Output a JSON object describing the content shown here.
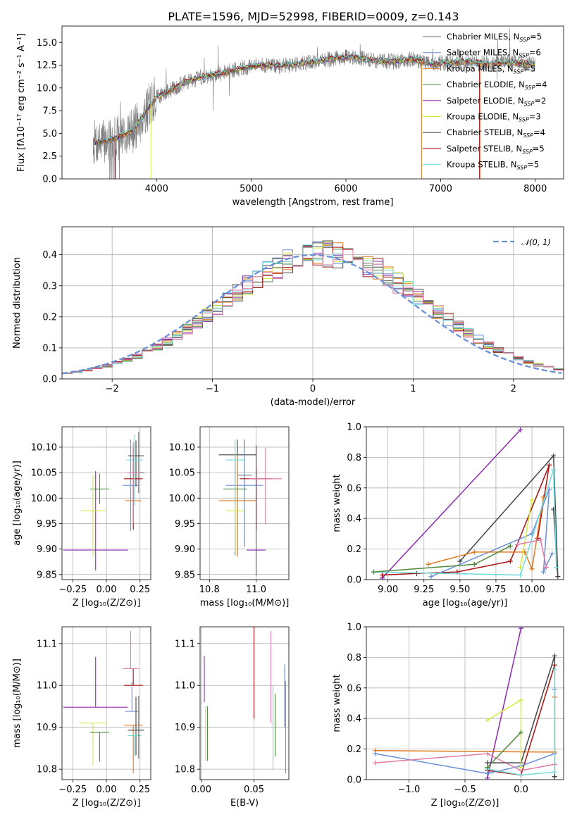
{
  "colors": {
    "chabrier_miles": "#6f6f6f",
    "salpeter_miles": "#6a8fd8",
    "kroupa_miles": "#e07a1f",
    "chabrier_elodie": "#4f8a3f",
    "salpeter_elodie": "#8d2ab0",
    "kroupa_elodie": "#d4ea3a",
    "chabrier_stelib": "#444444",
    "salpeter_stelib": "#aa1010",
    "kroupa_stelib": "#70dbdb",
    "pink": "#e07aa8",
    "normal": "#6a8fd8"
  },
  "chart_data": [
    {
      "id": "spectrum",
      "type": "line",
      "title": "PLATE=1596, MJD=52998, FIBERID=0009, z=0.143",
      "xlabel": "wavelength [Angstrom, rest frame]",
      "ylabel": "Flux [fλ10⁻¹⁷ erg cm⁻² s⁻¹ A⁻¹]",
      "xlim": [
        3000,
        8300
      ],
      "ylim": [
        0,
        16.8
      ],
      "xticks": [
        4000,
        5000,
        6000,
        7000,
        8000
      ],
      "yticks": [
        0.0,
        2.5,
        5.0,
        7.5,
        10.0,
        12.5,
        15.0
      ],
      "ytick_labels": [
        "0.0",
        "2.5",
        "5.0",
        "7.5",
        "10.0",
        "12.5",
        "15.0"
      ],
      "grid": false,
      "legend_position": "top-right",
      "legend": [
        {
          "label": "Chabrier MILES, N",
          "sub": "SSP",
          "suffix": "=5",
          "color": "#6f6f6f"
        },
        {
          "label": "Salpeter MILES, N",
          "sub": "SSP",
          "suffix": "=6",
          "color": "#6a8fd8"
        },
        {
          "label": "Kroupa MILES, N",
          "sub": "SSP",
          "suffix": "=5",
          "color": "#e07a1f"
        },
        {
          "label": "Chabrier ELODIE, N",
          "sub": "SSP",
          "suffix": "=4",
          "color": "#4f8a3f"
        },
        {
          "label": "Salpeter ELODIE, N",
          "sub": "SSP",
          "suffix": "=2",
          "color": "#8d2ab0"
        },
        {
          "label": "Kroupa ELODIE, N",
          "sub": "SSP",
          "suffix": "=3",
          "color": "#d4ea3a"
        },
        {
          "label": "Chabrier STELIB, N",
          "sub": "SSP",
          "suffix": "=4",
          "color": "#444444"
        },
        {
          "label": "Salpeter STELIB, N",
          "sub": "SSP",
          "suffix": "=5",
          "color": "#aa1010"
        },
        {
          "label": "Kroupa STELIB, N",
          "sub": "SSP",
          "suffix": "=5",
          "color": "#70dbdb"
        }
      ],
      "continuum": {
        "wavelength": [
          3330,
          3450,
          3600,
          3750,
          3900,
          4000,
          4100,
          4300,
          4500,
          4700,
          4900,
          5100,
          5300,
          5500,
          5700,
          5900,
          6100,
          6300,
          6500,
          6700,
          6900,
          7100,
          7300,
          7500,
          7700,
          7900,
          8000
        ],
        "flux": [
          4.0,
          4.1,
          4.6,
          5.3,
          7.6,
          9.0,
          9.5,
          10.6,
          11.3,
          11.6,
          12.2,
          12.5,
          12.4,
          12.7,
          12.9,
          13.3,
          13.4,
          13.0,
          12.9,
          13.2,
          12.6,
          12.8,
          12.9,
          12.6,
          12.8,
          12.7,
          12.6
        ]
      }
    },
    {
      "id": "residuals",
      "type": "line",
      "xlabel": "(data-model)/error",
      "ylabel": "Normed distribution",
      "xlim": [
        -2.5,
        2.5
      ],
      "ylim": [
        0,
        0.49
      ],
      "xticks": [
        -2,
        -1,
        0,
        1,
        2
      ],
      "xtick_labels": [
        "−2",
        "−1",
        "0",
        "1",
        "2"
      ],
      "yticks": [
        0.0,
        0.1,
        0.2,
        0.3,
        0.4
      ],
      "ytick_labels": [
        "0.0",
        "0.1",
        "0.2",
        "0.3",
        "0.4"
      ],
      "grid": true,
      "legend_position": "top-right",
      "legend": [
        {
          "label": "𝒩(0, 1)",
          "color": "#6a8fd8"
        }
      ],
      "bin_width": 0.1
    },
    {
      "id": "age-vs-Z",
      "type": "scatter",
      "xlabel": "Z [log₁₀(Z/Z⊙)]",
      "ylabel": "age  [log₁₀(age/yr)]",
      "xlim": [
        -0.33,
        0.33
      ],
      "ylim": [
        9.84,
        10.14
      ],
      "xticks": [
        -0.25,
        0.0,
        0.25
      ],
      "xtick_labels": [
        "−0.25",
        "0.00",
        "0.25"
      ],
      "yticks": [
        9.85,
        9.9,
        9.95,
        10.0,
        10.05,
        10.1
      ],
      "ytick_labels": [
        "9.85",
        "9.90",
        "9.95",
        "10.00",
        "10.05",
        "10.10"
      ],
      "grid": true,
      "points": [
        {
          "x": 0.24,
          "y": 10.05,
          "xerr": 0.04,
          "yerr": [
            0.04,
            0.08
          ],
          "color": "#6f6f6f"
        },
        {
          "x": 0.18,
          "y": 10.025,
          "xerr": 0.06,
          "yerr": [
            0.09,
            0.09
          ],
          "color": "#6a8fd8"
        },
        {
          "x": 0.2,
          "y": 9.995,
          "xerr": 0.06,
          "yerr": [
            0.05,
            0.09
          ],
          "color": "#e07a1f"
        },
        {
          "x": -0.05,
          "y": 10.018,
          "xerr": 0.07,
          "yerr": [
            0.03,
            0.03
          ],
          "color": "#4f8a3f"
        },
        {
          "x": -0.08,
          "y": 9.898,
          "xerr": 0.24,
          "yerr": [
            0.04,
            0.155
          ],
          "color": "#8d2ab0"
        },
        {
          "x": -0.1,
          "y": 9.975,
          "xerr": 0.09,
          "yerr": [
            0.09,
            0.07
          ],
          "color": "#d4ea3a"
        },
        {
          "x": 0.22,
          "y": 10.083,
          "xerr": 0.06,
          "yerr": [
            0.06,
            0.03
          ],
          "color": "#444444"
        },
        {
          "x": 0.2,
          "y": 10.038,
          "xerr": 0.07,
          "yerr": [
            0.1,
            0.06
          ],
          "color": "#aa1010"
        },
        {
          "x": 0.21,
          "y": 10.075,
          "xerr": 0.06,
          "yerr": [
            0.09,
            0.05
          ],
          "color": "#70dbdb"
        },
        {
          "x": 0.2,
          "y": 10.05,
          "xerr": 0.05,
          "yerr": [
            0.1,
            0.06
          ],
          "color": "#e07aa8"
        }
      ]
    },
    {
      "id": "age-vs-mass",
      "type": "scatter",
      "xlabel": "mass [log₁₀(M/M⊙)]",
      "xlim": [
        10.76,
        11.14
      ],
      "ylim": [
        9.84,
        10.14
      ],
      "xticks": [
        10.8,
        11.0
      ],
      "xtick_labels": [
        "10.8",
        "11.0"
      ],
      "yticks": [
        9.85,
        9.9,
        9.95,
        10.0,
        10.05,
        10.1
      ],
      "ytick_labels": [
        "9.85",
        "9.90",
        "9.95",
        "10.00",
        "10.05",
        "10.10"
      ],
      "grid": true,
      "points": [
        {
          "x": 10.92,
          "y": 10.085,
          "xerr": 0.08,
          "yerr": [
            0.2,
            0.03
          ],
          "color": "#444444"
        },
        {
          "x": 10.95,
          "y": 10.045,
          "xerr": 0.03,
          "yerr": [
            0.14,
            0.07
          ],
          "color": "#6f6f6f"
        },
        {
          "x": 10.95,
          "y": 10.025,
          "xerr": 0.08,
          "yerr": [
            0.115,
            0.07
          ],
          "color": "#6a8fd8"
        },
        {
          "x": 10.92,
          "y": 9.995,
          "xerr": 0.08,
          "yerr": [
            0.11,
            0.09
          ],
          "color": "#e07a1f"
        },
        {
          "x": 10.91,
          "y": 10.018,
          "xerr": 0.05,
          "yerr": [
            0.13,
            0.07
          ],
          "color": "#4f8a3f"
        },
        {
          "x": 11.0,
          "y": 9.898,
          "xerr": 0.04,
          "yerr": [
            0.05,
            0.16
          ],
          "color": "#8d2ab0"
        },
        {
          "x": 10.91,
          "y": 9.975,
          "xerr": 0.04,
          "yerr": [
            0.08,
            0.06
          ],
          "color": "#d4ea3a"
        },
        {
          "x": 11.0,
          "y": 10.038,
          "xerr": 0.07,
          "yerr": [
            0.1,
            0.065
          ],
          "color": "#aa1010"
        },
        {
          "x": 10.91,
          "y": 10.075,
          "xerr": 0.04,
          "yerr": [
            0.09,
            0.04
          ],
          "color": "#70dbdb"
        },
        {
          "x": 11.04,
          "y": 10.038,
          "xerr": 0.07,
          "yerr": [
            0.09,
            0.06
          ],
          "color": "#e07aa8"
        }
      ]
    },
    {
      "id": "massweight-vs-age",
      "type": "line",
      "xlabel": "age  [log₁₀(age/yr)]",
      "ylabel": "mass weight",
      "xlim": [
        8.85,
        10.22
      ],
      "ylim": [
        0.0,
        1.0
      ],
      "xticks": [
        9.0,
        9.25,
        9.5,
        9.75,
        10.0
      ],
      "xtick_labels": [
        "9.00",
        "9.25",
        "9.50",
        "9.75",
        "10.00"
      ],
      "yticks": [
        0.0,
        0.2,
        0.4,
        0.6,
        0.8,
        1.0
      ],
      "ytick_labels": [
        "0.0",
        "0.2",
        "0.4",
        "0.6",
        "0.8",
        "1.0"
      ],
      "grid": true,
      "series": [
        {
          "color": "#8d2ab0",
          "x": [
            8.96,
            9.92
          ],
          "y": [
            0.01,
            0.98
          ]
        },
        {
          "color": "#444444",
          "x": [
            9.5,
            10.15,
            10.18,
            10.15
          ],
          "y": [
            0.12,
            0.81,
            0.02,
            0.46
          ]
        },
        {
          "color": "#aa1010",
          "x": [
            8.96,
            9.2,
            9.48,
            9.85,
            10.12,
            10.04
          ],
          "y": [
            0.03,
            0.04,
            0.05,
            0.12,
            0.75,
            0.27
          ]
        },
        {
          "color": "#6a8fd8",
          "x": [
            9.3,
            10.0,
            10.12,
            10.08,
            10.14
          ],
          "y": [
            0.02,
            0.3,
            0.59,
            0.05,
            0.17
          ]
        },
        {
          "color": "#e07a1f",
          "x": [
            9.28,
            9.6,
            9.95,
            10.0,
            10.08
          ],
          "y": [
            0.1,
            0.18,
            0.18,
            0.07,
            0.54
          ]
        },
        {
          "color": "#70dbdb",
          "x": [
            8.9,
            9.92,
            10.15,
            10.17
          ],
          "y": [
            0.05,
            0.03,
            0.72,
            0.08
          ]
        },
        {
          "color": "#d4ea3a",
          "x": [
            9.92,
            10.0
          ],
          "y": [
            0.08,
            0.52
          ]
        },
        {
          "color": "#4f8a3f",
          "x": [
            8.9,
            9.6,
            9.85
          ],
          "y": [
            0.05,
            0.1,
            0.22
          ]
        },
        {
          "color": "#e07aa8",
          "x": [
            9.9,
            10.06,
            10.1
          ],
          "y": [
            0.23,
            0.26,
            0.08
          ]
        }
      ]
    },
    {
      "id": "mass-vs-Z",
      "type": "scatter",
      "xlabel": "Z [log₁₀(Z/Z⊙)]",
      "ylabel": "mass [log₁₀(M/M⊙)]",
      "xlim": [
        -0.33,
        0.33
      ],
      "ylim": [
        10.775,
        11.14
      ],
      "xticks": [
        -0.25,
        0.0,
        0.25
      ],
      "xtick_labels": [
        "−0.25",
        "0.00",
        "0.25"
      ],
      "yticks": [
        10.8,
        10.9,
        11.0,
        11.1
      ],
      "ytick_labels": [
        "10.8",
        "10.9",
        "11.0",
        "11.1"
      ],
      "grid": true,
      "points": [
        {
          "x": -0.08,
          "y": 10.948,
          "xerr": 0.24,
          "yerr": [
            0.0,
            0.12
          ],
          "color": "#8d2ab0"
        },
        {
          "x": 0.2,
          "y": 11.0,
          "xerr": 0.07,
          "yerr": [
            0.0,
            0.04
          ],
          "color": "#aa1010"
        },
        {
          "x": 0.19,
          "y": 10.938,
          "xerr": 0.05,
          "yerr": [
            0.0,
            0.07
          ],
          "color": "#6a8fd8"
        },
        {
          "x": 0.2,
          "y": 10.905,
          "xerr": 0.07,
          "yerr": [
            0.115,
            0.0
          ],
          "color": "#e07a1f"
        },
        {
          "x": -0.1,
          "y": 10.91,
          "xerr": 0.1,
          "yerr": [
            0.1,
            0.0
          ],
          "color": "#d4ea3a"
        },
        {
          "x": -0.05,
          "y": 10.888,
          "xerr": 0.07,
          "yerr": [
            0.07,
            0.0
          ],
          "color": "#4f8a3f"
        },
        {
          "x": 0.22,
          "y": 10.893,
          "xerr": 0.06,
          "yerr": [
            0.06,
            0.08
          ],
          "color": "#444444"
        },
        {
          "x": 0.21,
          "y": 10.88,
          "xerr": 0.05,
          "yerr": [
            0.05,
            0.0
          ],
          "color": "#70dbdb"
        },
        {
          "x": 0.18,
          "y": 11.04,
          "xerr": 0.06,
          "yerr": [
            0.0,
            0.09
          ],
          "color": "#e07aa8"
        },
        {
          "x": 0.24,
          "y": 10.895,
          "xerr": 0.0,
          "yerr": [
            0.07,
            0.08
          ],
          "color": "#6f6f6f"
        }
      ]
    },
    {
      "id": "mass-vs-ebv",
      "type": "scatter",
      "xlabel": "E(B-V)",
      "xlim": [
        -0.001,
        0.083
      ],
      "ylim": [
        10.775,
        11.14
      ],
      "xticks": [
        0.0,
        0.05
      ],
      "xtick_labels": [
        "0.00",
        "0.05"
      ],
      "yticks": [
        10.8,
        10.9,
        11.0,
        11.1
      ],
      "ytick_labels": [
        "10.8",
        "10.9",
        "11.0",
        "11.1"
      ],
      "grid": true,
      "points": [
        {
          "x": 0.003,
          "y": 11.01,
          "yerr": [
            0.05,
            0.06
          ],
          "color": "#8d2ab0"
        },
        {
          "x": 0.004,
          "y": 10.89,
          "yerr": [
            0.07,
            0.06
          ],
          "color": "#d4ea3a"
        },
        {
          "x": 0.006,
          "y": 10.89,
          "yerr": [
            0.07,
            0.06
          ],
          "color": "#4f8a3f"
        },
        {
          "x": 0.05,
          "y": 11.03,
          "yerr": [
            0.11,
            0.13
          ],
          "color": "#aa1010"
        },
        {
          "x": 0.066,
          "y": 11.04,
          "yerr": [
            0.13,
            0.09
          ],
          "color": "#e07aa8"
        },
        {
          "x": 0.068,
          "y": 10.9,
          "yerr": [
            0.1,
            0.1
          ],
          "color": "#70dbdb"
        },
        {
          "x": 0.07,
          "y": 10.9,
          "yerr": [
            0.07,
            0.08
          ],
          "color": "#4f8a3f"
        },
        {
          "x": 0.079,
          "y": 10.96,
          "yerr": [
            0.06,
            0.09
          ],
          "color": "#6a8fd8"
        },
        {
          "x": 0.08,
          "y": 10.9,
          "yerr": [
            0.11,
            0.11
          ],
          "color": "#e07a1f"
        }
      ]
    },
    {
      "id": "massweight-vs-Z",
      "type": "line",
      "xlabel": "Z [log₁₀(Z/Z⊙)]",
      "ylabel": "mass weight",
      "xlim": [
        -1.38,
        0.38
      ],
      "ylim": [
        0.0,
        1.0
      ],
      "xticks": [
        -1.0,
        -0.5,
        0.0
      ],
      "xtick_labels": [
        "−1.0",
        "−0.5",
        "0.0"
      ],
      "yticks": [
        0.0,
        0.2,
        0.4,
        0.6,
        0.8,
        1.0
      ],
      "ytick_labels": [
        "0.0",
        "0.2",
        "0.4",
        "0.6",
        "0.8",
        "1.0"
      ],
      "grid": true,
      "series": [
        {
          "color": "#8d2ab0",
          "x": [
            -0.3,
            0.0
          ],
          "y": [
            0.01,
            0.99
          ]
        },
        {
          "color": "#aa1010",
          "x": [
            -0.3,
            0.0,
            0.3,
            0.3
          ],
          "y": [
            0.06,
            0.03,
            0.75,
            0.02
          ]
        },
        {
          "color": "#e07a1f",
          "x": [
            -1.3,
            0.3,
            0.3
          ],
          "y": [
            0.19,
            0.18,
            0.54
          ]
        },
        {
          "color": "#6a8fd8",
          "x": [
            -1.3,
            -0.3,
            0.0,
            0.3,
            0.3
          ],
          "y": [
            0.17,
            0.04,
            0.09,
            0.17,
            0.59
          ]
        },
        {
          "color": "#e07aa8",
          "x": [
            -1.3,
            -0.3,
            0.0,
            0.3
          ],
          "y": [
            0.11,
            0.17,
            0.06,
            0.1
          ]
        },
        {
          "color": "#444444",
          "x": [
            -0.3,
            0.0,
            0.3,
            0.3
          ],
          "y": [
            0.11,
            0.11,
            0.81,
            0.02
          ]
        },
        {
          "color": "#d4ea3a",
          "x": [
            -0.3,
            0.0,
            0.0
          ],
          "y": [
            0.39,
            0.52,
            0.08
          ]
        },
        {
          "color": "#70dbdb",
          "x": [
            -0.3,
            0.0,
            0.3,
            0.3
          ],
          "y": [
            0.07,
            0.03,
            0.05,
            0.72
          ]
        },
        {
          "color": "#4f8a3f",
          "x": [
            -0.3,
            0.0
          ],
          "y": [
            0.08,
            0.31
          ]
        }
      ]
    }
  ]
}
